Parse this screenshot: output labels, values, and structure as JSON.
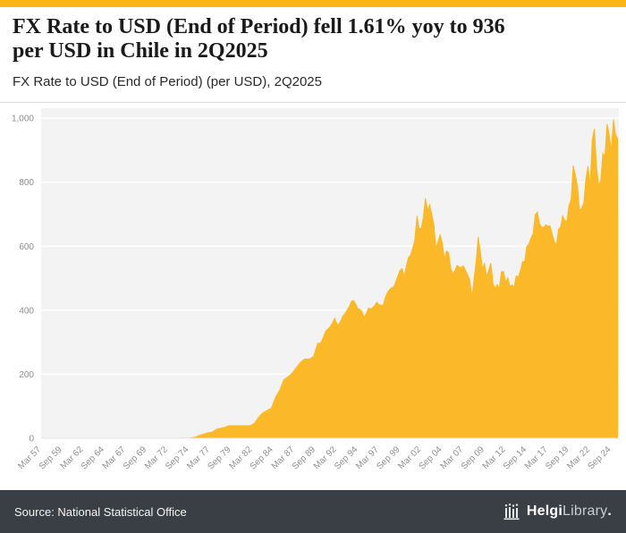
{
  "page": {
    "accent_color": "#FBB515",
    "footer_bg": "#3A3F45"
  },
  "header": {
    "title_line1": "FX Rate to USD (End of Period) fell 1.61% yoy to 936",
    "title_line2": "per USD in Chile in 2Q2025",
    "subtitle": "FX Rate to USD (End of Period) (per USD), 2Q2025"
  },
  "footer": {
    "source": "Source: National Statistical Office",
    "logo_bold": "Helgi",
    "logo_light": "Library",
    "logo_dot": "."
  },
  "chart_data": {
    "type": "area",
    "title": "FX Rate to USD (End of Period) fell 1.61% yoy to 936 per USD in Chile in 2Q2025",
    "subtitle": "FX Rate to USD (End of Period) (per USD), 2Q2025",
    "country": "Chile",
    "unit": "per USD",
    "latest_period": "2Q2025",
    "latest_value": 936,
    "yoy_change_pct": -1.61,
    "fill_color": "#FBB929",
    "background": "#F3F3F3",
    "grid_color": "#FFFFFF",
    "axis_text_color": "#8f8f8f",
    "x_range": [
      1957.0,
      2025.4
    ],
    "y_range": [
      0,
      1000
    ],
    "y_ticks": [
      0,
      200,
      400,
      600,
      800,
      1000
    ],
    "y_tick_labels": [
      "0",
      "200",
      "400",
      "600",
      "800",
      "1,000"
    ],
    "x_tick_labels": [
      "Mar 57",
      "Sep 59",
      "Mar 62",
      "Sep 64",
      "Mar 67",
      "Sep 69",
      "Mar 72",
      "Sep 74",
      "Mar 77",
      "Sep 79",
      "Mar 82",
      "Sep 84",
      "Mar 87",
      "Sep 89",
      "Mar 92",
      "Sep 94",
      "Mar 97",
      "Sep 99",
      "Mar 02",
      "Sep 04",
      "Mar 07",
      "Sep 09",
      "Mar 12",
      "Sep 14",
      "Mar 17",
      "Sep 19",
      "Mar 22",
      "Sep 24"
    ],
    "x_tick_positions": [
      1957.0,
      1959.5,
      1962.0,
      1964.5,
      1967.0,
      1969.5,
      1972.0,
      1974.5,
      1977.0,
      1979.5,
      1982.0,
      1984.5,
      1987.0,
      1989.5,
      1992.0,
      1994.5,
      1997.0,
      1999.5,
      2002.0,
      2004.5,
      2007.0,
      2009.5,
      2012.0,
      2014.5,
      2017.0,
      2019.5,
      2022.0,
      2024.5
    ],
    "points": [
      [
        1957.0,
        0.001
      ],
      [
        1958.75,
        0.001
      ],
      [
        1960.75,
        0.001
      ],
      [
        1962.75,
        0.002
      ],
      [
        1964.75,
        0.003
      ],
      [
        1966.75,
        0.004
      ],
      [
        1968.75,
        0.007
      ],
      [
        1970.75,
        0.012
      ],
      [
        1972.75,
        0.05
      ],
      [
        1973.75,
        0.28
      ],
      [
        1974.75,
        0.83
      ],
      [
        1975.25,
        4
      ],
      [
        1975.75,
        8.5
      ],
      [
        1976.25,
        13
      ],
      [
        1976.75,
        17
      ],
      [
        1977.25,
        19
      ],
      [
        1977.75,
        28
      ],
      [
        1978.25,
        31
      ],
      [
        1978.75,
        34
      ],
      [
        1979.25,
        39
      ],
      [
        1979.75,
        39
      ],
      [
        1980.25,
        39
      ],
      [
        1980.75,
        39
      ],
      [
        1981.25,
        39
      ],
      [
        1981.75,
        39
      ],
      [
        1982.25,
        46
      ],
      [
        1982.75,
        66
      ],
      [
        1983.25,
        79
      ],
      [
        1983.75,
        87
      ],
      [
        1984.25,
        94
      ],
      [
        1984.75,
        128
      ],
      [
        1985.25,
        150
      ],
      [
        1985.75,
        183
      ],
      [
        1986.25,
        192
      ],
      [
        1986.75,
        204
      ],
      [
        1987.25,
        222
      ],
      [
        1987.75,
        238
      ],
      [
        1988.25,
        248
      ],
      [
        1988.75,
        247
      ],
      [
        1989.25,
        255
      ],
      [
        1989.75,
        297
      ],
      [
        1990.0,
        296
      ],
      [
        1990.25,
        305
      ],
      [
        1990.5,
        322
      ],
      [
        1990.75,
        337
      ],
      [
        1991.0,
        342
      ],
      [
        1991.25,
        350
      ],
      [
        1991.5,
        360
      ],
      [
        1991.75,
        375
      ],
      [
        1992.0,
        358
      ],
      [
        1992.25,
        355
      ],
      [
        1992.5,
        368
      ],
      [
        1992.75,
        382
      ],
      [
        1993.0,
        390
      ],
      [
        1993.25,
        402
      ],
      [
        1993.5,
        412
      ],
      [
        1993.75,
        428
      ],
      [
        1994.0,
        430
      ],
      [
        1994.25,
        418
      ],
      [
        1994.5,
        405
      ],
      [
        1994.75,
        402
      ],
      [
        1995.0,
        395
      ],
      [
        1995.25,
        378
      ],
      [
        1995.5,
        390
      ],
      [
        1995.75,
        407
      ],
      [
        1996.0,
        404
      ],
      [
        1996.25,
        408
      ],
      [
        1996.5,
        415
      ],
      [
        1996.75,
        425
      ],
      [
        1997.0,
        417
      ],
      [
        1997.25,
        416
      ],
      [
        1997.5,
        415
      ],
      [
        1997.75,
        440
      ],
      [
        1998.0,
        455
      ],
      [
        1998.25,
        465
      ],
      [
        1998.5,
        470
      ],
      [
        1998.75,
        473
      ],
      [
        1999.0,
        490
      ],
      [
        1999.25,
        508
      ],
      [
        1999.5,
        525
      ],
      [
        1999.75,
        530
      ],
      [
        2000.0,
        505
      ],
      [
        2000.25,
        540
      ],
      [
        2000.5,
        565
      ],
      [
        2000.75,
        573
      ],
      [
        2001.0,
        595
      ],
      [
        2001.25,
        620
      ],
      [
        2001.5,
        695
      ],
      [
        2001.75,
        656
      ],
      [
        2002.0,
        655
      ],
      [
        2002.25,
        690
      ],
      [
        2002.5,
        750
      ],
      [
        2002.75,
        712
      ],
      [
        2003.0,
        730
      ],
      [
        2003.25,
        700
      ],
      [
        2003.5,
        665
      ],
      [
        2003.75,
        593
      ],
      [
        2004.0,
        615
      ],
      [
        2004.25,
        635
      ],
      [
        2004.5,
        610
      ],
      [
        2004.75,
        559
      ],
      [
        2005.0,
        585
      ],
      [
        2005.25,
        580
      ],
      [
        2005.5,
        530
      ],
      [
        2005.75,
        514
      ],
      [
        2006.0,
        525
      ],
      [
        2006.25,
        540
      ],
      [
        2006.5,
        535
      ],
      [
        2006.75,
        534
      ],
      [
        2007.0,
        538
      ],
      [
        2007.25,
        525
      ],
      [
        2007.5,
        510
      ],
      [
        2007.75,
        495
      ],
      [
        2008.0,
        437
      ],
      [
        2008.25,
        495
      ],
      [
        2008.5,
        552
      ],
      [
        2008.75,
        629
      ],
      [
        2009.0,
        583
      ],
      [
        2009.25,
        530
      ],
      [
        2009.5,
        546
      ],
      [
        2009.75,
        506
      ],
      [
        2010.0,
        526
      ],
      [
        2010.25,
        547
      ],
      [
        2010.5,
        484
      ],
      [
        2010.75,
        468
      ],
      [
        2011.0,
        480
      ],
      [
        2011.25,
        468
      ],
      [
        2011.5,
        520
      ],
      [
        2011.75,
        521
      ],
      [
        2012.0,
        488
      ],
      [
        2012.25,
        501
      ],
      [
        2012.5,
        474
      ],
      [
        2012.75,
        479
      ],
      [
        2013.0,
        472
      ],
      [
        2013.25,
        507
      ],
      [
        2013.5,
        504
      ],
      [
        2013.75,
        524
      ],
      [
        2014.0,
        551
      ],
      [
        2014.25,
        553
      ],
      [
        2014.5,
        599
      ],
      [
        2014.75,
        607
      ],
      [
        2015.0,
        626
      ],
      [
        2015.25,
        639
      ],
      [
        2015.5,
        698
      ],
      [
        2015.75,
        707
      ],
      [
        2016.0,
        670
      ],
      [
        2016.25,
        661
      ],
      [
        2016.5,
        658
      ],
      [
        2016.75,
        667
      ],
      [
        2017.0,
        662
      ],
      [
        2017.25,
        664
      ],
      [
        2017.5,
        639
      ],
      [
        2017.75,
        615
      ],
      [
        2018.0,
        603
      ],
      [
        2018.25,
        651
      ],
      [
        2018.5,
        660
      ],
      [
        2018.75,
        695
      ],
      [
        2019.0,
        680
      ],
      [
        2019.25,
        679
      ],
      [
        2019.5,
        728
      ],
      [
        2019.75,
        745
      ],
      [
        2020.0,
        852
      ],
      [
        2020.25,
        821
      ],
      [
        2020.5,
        788
      ],
      [
        2020.75,
        711
      ],
      [
        2021.0,
        719
      ],
      [
        2021.25,
        735
      ],
      [
        2021.5,
        811
      ],
      [
        2021.75,
        850
      ],
      [
        2022.0,
        786
      ],
      [
        2022.25,
        932
      ],
      [
        2022.5,
        966
      ],
      [
        2022.75,
        851
      ],
      [
        2023.0,
        793
      ],
      [
        2023.25,
        802
      ],
      [
        2023.5,
        890
      ],
      [
        2023.75,
        879
      ],
      [
        2024.0,
        982
      ],
      [
        2024.25,
        951
      ],
      [
        2024.5,
        898
      ],
      [
        2024.75,
        996
      ],
      [
        2025.0,
        950
      ],
      [
        2025.25,
        936
      ]
    ]
  }
}
